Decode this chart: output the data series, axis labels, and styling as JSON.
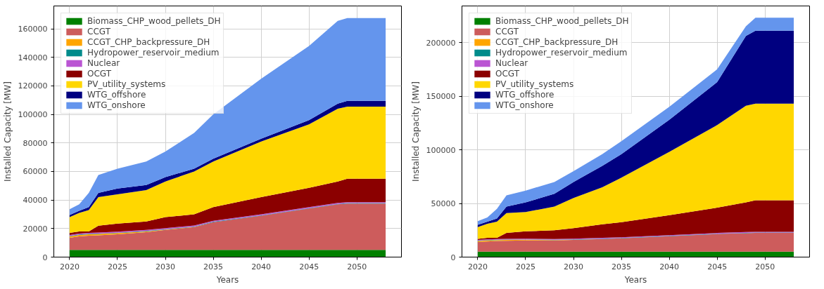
{
  "chart_data": [
    {
      "type": "area",
      "stacked": true,
      "xlabel": "Years",
      "ylabel": "Installed Capacity [MW]",
      "x": [
        2020,
        2021,
        2022,
        2023,
        2025,
        2028,
        2030,
        2033,
        2035,
        2040,
        2045,
        2048,
        2049,
        2053
      ],
      "xlim": [
        2018.35,
        2054.65
      ],
      "xticks": [
        2020,
        2025,
        2030,
        2035,
        2040,
        2045,
        2050
      ],
      "ylim": [
        0,
        176000
      ],
      "yticks": [
        0,
        20000,
        40000,
        60000,
        80000,
        100000,
        120000,
        140000,
        160000
      ],
      "grid": true,
      "legend": "top left",
      "series": [
        {
          "name": "Biomass_CHP_wood_pellets_DH",
          "color": "#008000",
          "values": [
            5000,
            5000,
            5000,
            5000,
            5000,
            5000,
            5000,
            5000,
            5000,
            5000,
            5000,
            5000,
            5000,
            5000
          ]
        },
        {
          "name": "CCGT",
          "color": "#cd5c5c",
          "values": [
            8500,
            9500,
            10000,
            10200,
            11000,
            12500,
            14000,
            16000,
            19500,
            24000,
            29000,
            32000,
            32500,
            32500
          ]
        },
        {
          "name": "CCGT_CHP_backpressure_DH",
          "color": "#ffa500",
          "values": [
            1000,
            1000,
            1000,
            1000,
            800,
            500,
            300,
            100,
            0,
            0,
            0,
            0,
            0,
            0
          ]
        },
        {
          "name": "Hydropower_reservoir_medium",
          "color": "#008b8b",
          "values": [
            300,
            300,
            300,
            300,
            300,
            300,
            300,
            300,
            300,
            300,
            300,
            300,
            300,
            300
          ]
        },
        {
          "name": "Nuclear",
          "color": "#ba55d3",
          "values": [
            700,
            700,
            700,
            700,
            700,
            700,
            700,
            700,
            700,
            700,
            700,
            700,
            700,
            700
          ]
        },
        {
          "name": "OCGT",
          "color": "#8b0000",
          "values": [
            1500,
            1500,
            1000,
            4800,
            5700,
            6000,
            7700,
            7900,
            9500,
            12000,
            13500,
            15000,
            16500,
            16500
          ]
        },
        {
          "name": "PV_utility_systems",
          "color": "#ffd700",
          "values": [
            11000,
            13000,
            15000,
            20000,
            20500,
            22000,
            25000,
            30000,
            32000,
            39000,
            44500,
            51000,
            50500,
            50500
          ]
        },
        {
          "name": "WTG_offshore",
          "color": "#000080",
          "values": [
            1500,
            1500,
            2000,
            3000,
            4000,
            3500,
            3000,
            2000,
            2000,
            2000,
            3000,
            3500,
            4000,
            4000
          ]
        },
        {
          "name": "WTG_onshore",
          "color": "#6495ed",
          "values": [
            4000,
            4500,
            10000,
            12500,
            14000,
            16500,
            18000,
            25000,
            31000,
            42000,
            52000,
            58000,
            58000,
            58000
          ]
        }
      ]
    },
    {
      "type": "area",
      "stacked": true,
      "xlabel": "Years",
      "ylabel": "Installed Capacity [MW]",
      "x": [
        2020,
        2021,
        2022,
        2023,
        2025,
        2028,
        2030,
        2033,
        2035,
        2040,
        2045,
        2048,
        2049,
        2053
      ],
      "xlim": [
        2018.35,
        2054.65
      ],
      "xticks": [
        2020,
        2025,
        2030,
        2035,
        2040,
        2045,
        2050
      ],
      "ylim": [
        0,
        234000
      ],
      "yticks": [
        0,
        50000,
        100000,
        150000,
        200000
      ],
      "grid": true,
      "legend": "top left",
      "series": [
        {
          "name": "Biomass_CHP_wood_pellets_DH",
          "color": "#008000",
          "values": [
            5000,
            5000,
            5000,
            5000,
            5000,
            5000,
            5000,
            5000,
            5000,
            5000,
            5000,
            5000,
            5000,
            5000
          ]
        },
        {
          "name": "CCGT",
          "color": "#cd5c5c",
          "values": [
            9000,
            9500,
            10000,
            10200,
            10500,
            10500,
            11000,
            11800,
            12500,
            14500,
            16500,
            17300,
            17500,
            17500
          ]
        },
        {
          "name": "CCGT_CHP_backpressure_DH",
          "color": "#ffa500",
          "values": [
            1000,
            1000,
            800,
            800,
            600,
            400,
            200,
            100,
            0,
            0,
            0,
            0,
            0,
            0
          ]
        },
        {
          "name": "Hydropower_reservoir_medium",
          "color": "#008b8b",
          "values": [
            300,
            300,
            300,
            300,
            300,
            300,
            300,
            300,
            300,
            300,
            300,
            300,
            300,
            300
          ]
        },
        {
          "name": "Nuclear",
          "color": "#ba55d3",
          "values": [
            700,
            700,
            700,
            700,
            700,
            700,
            700,
            700,
            700,
            700,
            700,
            700,
            700,
            700
          ]
        },
        {
          "name": "OCGT",
          "color": "#8b0000",
          "values": [
            1000,
            1500,
            1200,
            5500,
            6900,
            8100,
            9800,
            12600,
            14000,
            18500,
            23500,
            27700,
            29500,
            29500
          ]
        },
        {
          "name": "PV_utility_systems",
          "color": "#ffd700",
          "values": [
            11000,
            13000,
            15000,
            18500,
            18000,
            22000,
            28000,
            34500,
            41500,
            59000,
            77000,
            90000,
            90000,
            90000
          ]
        },
        {
          "name": "WTG_offshore",
          "color": "#000080",
          "values": [
            2000,
            2000,
            3000,
            6000,
            9000,
            12000,
            15000,
            20000,
            22000,
            30000,
            40000,
            65000,
            68000,
            68000
          ]
        },
        {
          "name": "WTG_onshore",
          "color": "#6495ed",
          "values": [
            3500,
            4000,
            9000,
            10500,
            11000,
            11000,
            10000,
            11000,
            12000,
            12000,
            12000,
            9000,
            12000,
            12000
          ]
        }
      ]
    }
  ]
}
